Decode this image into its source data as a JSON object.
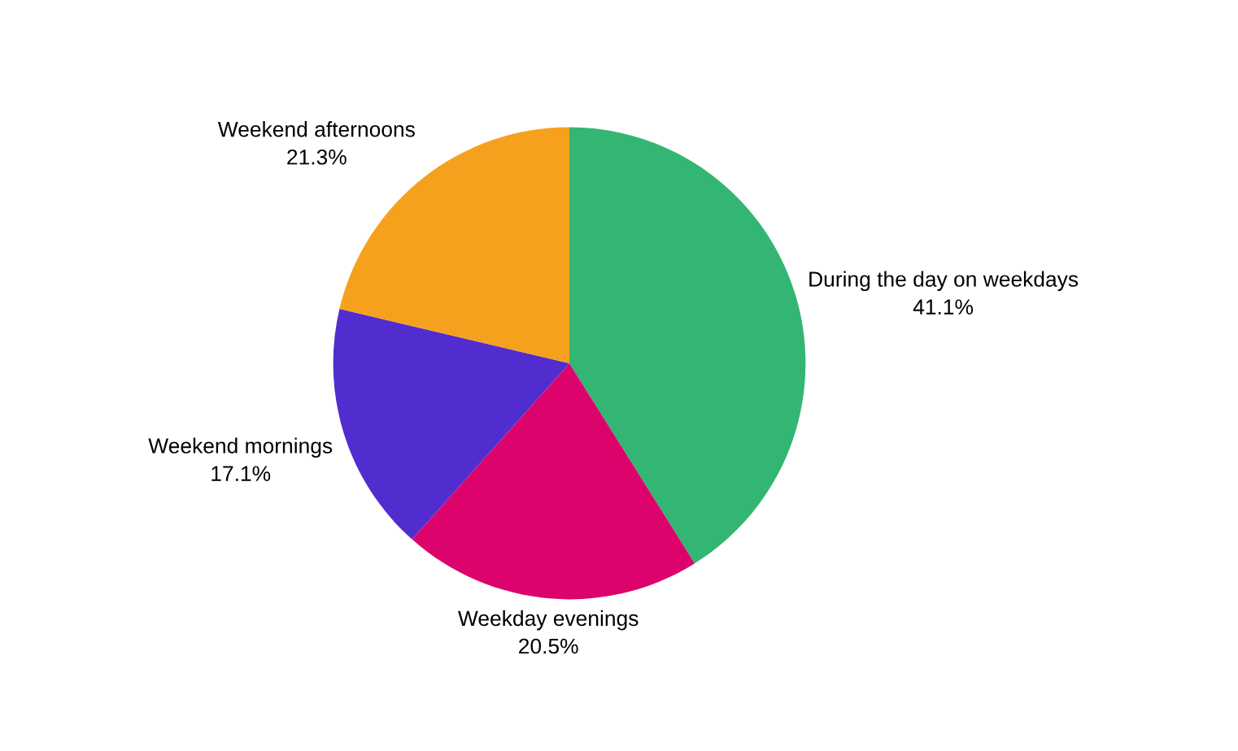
{
  "chart_data": {
    "type": "pie",
    "categories": [
      "During the day on weekdays",
      "Weekday evenings",
      "Weekend mornings",
      "Weekend afternoons"
    ],
    "values": [
      41.1,
      20.5,
      17.1,
      21.3
    ],
    "value_labels": [
      "41.1%",
      "20.5%",
      "17.1%",
      "21.3%"
    ],
    "colors": [
      "#33b673",
      "#dc046c",
      "#512dcf",
      "#f6a11d"
    ],
    "legend": false
  }
}
